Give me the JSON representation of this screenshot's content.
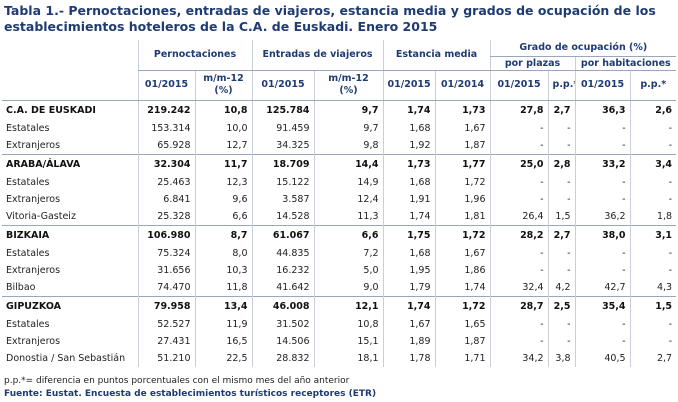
{
  "title": "Tabla 1.- Pernoctaciones, entradas de viajeros, estancia media y grados de ocupación de los establecimientos hoteleros de la C.A. de Euskadi. Enero 2015",
  "header": {
    "groups": [
      "Pernoctaciones",
      "Entradas de viajeros",
      "Estancia media",
      "Grado de ocupación (%)"
    ],
    "subgroups": [
      "por plazas",
      "por habitaciones"
    ],
    "columns": [
      "01/2015",
      "m/m-12 (%)",
      "01/2015",
      "m/m-12 (%)",
      "01/2015",
      "01/2014",
      "01/2015",
      "p.p.*",
      "01/2015",
      "p.p.*"
    ]
  },
  "sections": [
    {
      "total": [
        "C.A. DE EUSKADI",
        "219.242",
        "10,8",
        "125.784",
        "9,7",
        "1,74",
        "1,73",
        "27,8",
        "2,7",
        "36,3",
        "2,6"
      ],
      "rows": [
        [
          "Estatales",
          "153.314",
          "10,0",
          "91.459",
          "9,7",
          "1,68",
          "1,67",
          "-",
          "-",
          "-",
          "-"
        ],
        [
          "Extranjeros",
          "65.928",
          "12,7",
          "34.325",
          "9,8",
          "1,92",
          "1,87",
          "-",
          "-",
          "-",
          "-"
        ]
      ]
    },
    {
      "total": [
        "ARABA/ÁLAVA",
        "32.304",
        "11,7",
        "18.709",
        "14,4",
        "1,73",
        "1,77",
        "25,0",
        "2,8",
        "33,2",
        "3,4"
      ],
      "rows": [
        [
          "Estatales",
          "25.463",
          "12,3",
          "15.122",
          "14,9",
          "1,68",
          "1,72",
          "-",
          "-",
          "-",
          "-"
        ],
        [
          "Extranjeros",
          "6.841",
          "9,6",
          "3.587",
          "12,4",
          "1,91",
          "1,96",
          "-",
          "-",
          "-",
          "-"
        ],
        [
          "Vitoria-Gasteiz",
          "25.328",
          "6,6",
          "14.528",
          "11,3",
          "1,74",
          "1,81",
          "26,4",
          "1,5",
          "36,2",
          "1,8"
        ]
      ]
    },
    {
      "total": [
        "BIZKAIA",
        "106.980",
        "8,7",
        "61.067",
        "6,6",
        "1,75",
        "1,72",
        "28,2",
        "2,7",
        "38,0",
        "3,1"
      ],
      "rows": [
        [
          "Estatales",
          "75.324",
          "8,0",
          "44.835",
          "7,2",
          "1,68",
          "1,67",
          "-",
          "-",
          "-",
          "-"
        ],
        [
          "Extranjeros",
          "31.656",
          "10,3",
          "16.232",
          "5,0",
          "1,95",
          "1,86",
          "-",
          "-",
          "-",
          "-"
        ],
        [
          "Bilbao",
          "74.470",
          "11,8",
          "41.642",
          "9,0",
          "1,79",
          "1,74",
          "32,4",
          "4,2",
          "42,7",
          "4,3"
        ]
      ]
    },
    {
      "total": [
        "GIPUZKOA",
        "79.958",
        "13,4",
        "46.008",
        "12,1",
        "1,74",
        "1,72",
        "28,7",
        "2,5",
        "35,4",
        "1,5"
      ],
      "rows": [
        [
          "Estatales",
          "52.527",
          "11,9",
          "31.502",
          "10,8",
          "1,67",
          "1,65",
          "-",
          "-",
          "-",
          "-"
        ],
        [
          "Extranjeros",
          "27.431",
          "16,5",
          "14.506",
          "15,1",
          "1,89",
          "1,87",
          "-",
          "-",
          "-",
          "-"
        ],
        [
          "Donostia / San Sebastián",
          "51.210",
          "22,5",
          "28.832",
          "18,1",
          "1,78",
          "1,71",
          "34,2",
          "3,8",
          "40,5",
          "2,7"
        ]
      ]
    }
  ],
  "footnote": "p.p.*= diferencia en puntos porcentuales con el mismo mes del año anterior",
  "source": "Fuente: Eustat. Encuesta de establecimientos turísticos receptores (ETR)"
}
